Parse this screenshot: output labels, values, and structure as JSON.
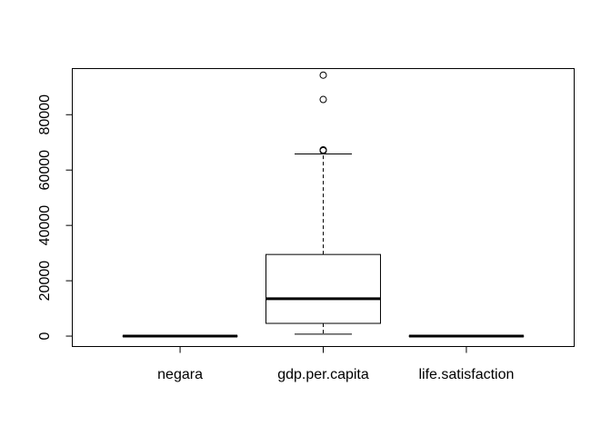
{
  "chart_data": {
    "type": "boxplot",
    "title": "",
    "xlabel": "",
    "ylabel": "",
    "ylim": [
      -3600,
      96500
    ],
    "yticks": [
      0,
      20000,
      40000,
      60000,
      80000
    ],
    "ytick_labels": [
      "0",
      "20000",
      "40000",
      "60000",
      "80000"
    ],
    "grid": false,
    "legend": false,
    "categories": [
      "negara",
      "gdp.per.capita",
      "life.satisfaction"
    ],
    "boxes": [
      {
        "name": "negara",
        "whisker_low": 0,
        "q1": 0,
        "median": 0,
        "q3": 0,
        "whisker_high": 0,
        "outliers": []
      },
      {
        "name": "gdp.per.capita",
        "whisker_low": 700,
        "q1": 4600,
        "median": 13500,
        "q3": 29500,
        "whisker_high": 65800,
        "outliers": [
          67000,
          67300,
          85500,
          94300
        ]
      },
      {
        "name": "life.satisfaction",
        "whisker_low": 0,
        "q1": 0,
        "median": 0,
        "q3": 0,
        "whisker_high": 0,
        "outliers": []
      }
    ]
  }
}
